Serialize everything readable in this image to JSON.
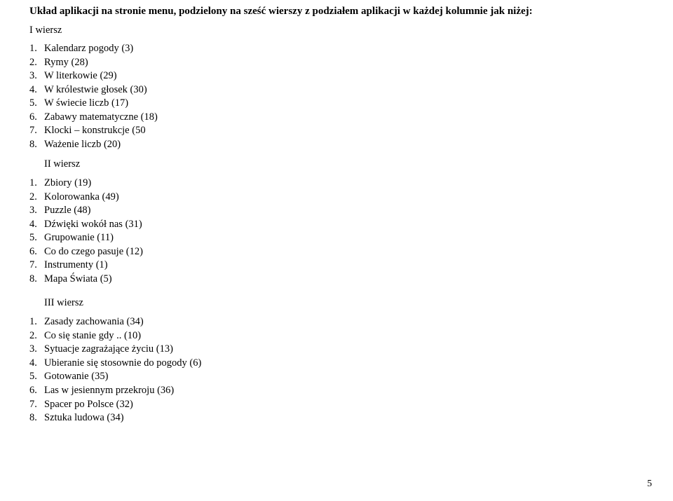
{
  "title": "Układ aplikacji na stronie menu, podzielony na sześć wierszy z podziałem aplikacji w każdej kolumnie jak niżej:",
  "rows": [
    {
      "label": "I wiersz",
      "items": [
        "Kalendarz pogody (3)",
        "Rymy (28)",
        "W literkowie (29)",
        "W królestwie głosek (30)",
        "W świecie liczb (17)",
        "Zabawy matematyczne (18)",
        "Klocki – konstrukcje (50",
        "Ważenie liczb (20)"
      ]
    },
    {
      "label": "II wiersz",
      "items": [
        "Zbiory (19)",
        "Kolorowanka (49)",
        "Puzzle (48)",
        "Dźwięki wokół nas (31)",
        "Grupowanie (11)",
        "Co do czego pasuje (12)",
        "Instrumenty (1)",
        "Mapa Świata (5)"
      ]
    },
    {
      "label": "III wiersz",
      "items": [
        "Zasady zachowania (34)",
        "Co się stanie gdy .. (10)",
        "Sytuacje zagrażające życiu (13)",
        "Ubieranie się stosownie do pogody (6)",
        "Gotowanie (35)",
        "Las w jesiennym przekroju (36)",
        "Spacer po Polsce (32)",
        "Sztuka ludowa (34)"
      ]
    }
  ],
  "page_number": "5"
}
